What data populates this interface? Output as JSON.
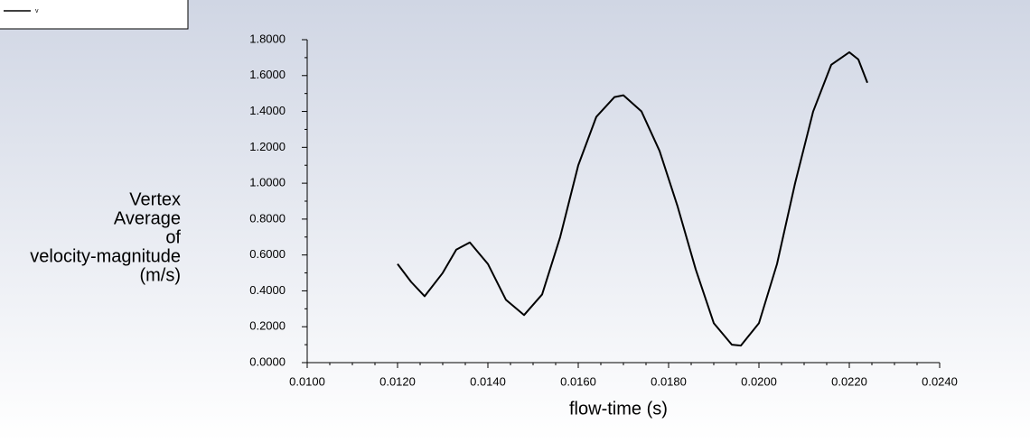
{
  "chart_data": {
    "type": "line",
    "x_label": "flow-time (s)",
    "y_label": [
      "Vertex",
      "Average",
      "of",
      "velocity-magnitude",
      "(m/s)"
    ],
    "x": [
      0.012,
      0.0123,
      0.0126,
      0.013,
      0.0133,
      0.0136,
      0.014,
      0.0144,
      0.0148,
      0.0152,
      0.0156,
      0.016,
      0.0164,
      0.0168,
      0.017,
      0.0174,
      0.0178,
      0.0182,
      0.0186,
      0.019,
      0.0194,
      0.0196,
      0.02,
      0.0204,
      0.0208,
      0.0212,
      0.0216,
      0.022,
      0.0222,
      0.0224
    ],
    "series": [
      {
        "name": "v",
        "color": "#000000",
        "values": [
          0.55,
          0.45,
          0.37,
          0.5,
          0.63,
          0.67,
          0.55,
          0.35,
          0.265,
          0.38,
          0.7,
          1.1,
          1.37,
          1.48,
          1.49,
          1.4,
          1.18,
          0.87,
          0.52,
          0.22,
          0.1,
          0.095,
          0.22,
          0.55,
          1.0,
          1.4,
          1.66,
          1.73,
          1.69,
          1.56
        ]
      }
    ],
    "xlim": [
      0.01,
      0.024
    ],
    "ylim": [
      0,
      1.8
    ],
    "xticks": [
      {
        "value": 0.01,
        "label": "0.0100"
      },
      {
        "value": 0.012,
        "label": "0.0120"
      },
      {
        "value": 0.014,
        "label": "0.0140"
      },
      {
        "value": 0.016,
        "label": "0.0160"
      },
      {
        "value": 0.018,
        "label": "0.0180"
      },
      {
        "value": 0.02,
        "label": "0.0200"
      },
      {
        "value": 0.022,
        "label": "0.0220"
      },
      {
        "value": 0.024,
        "label": "0.0240"
      }
    ],
    "yticks": [
      {
        "value": 0,
        "label": "0.0000"
      },
      {
        "value": 0.2,
        "label": "0.2000"
      },
      {
        "value": 0.4,
        "label": "0.4000"
      },
      {
        "value": 0.6,
        "label": "0.6000"
      },
      {
        "value": 0.8,
        "label": "0.8000"
      },
      {
        "value": 1.0,
        "label": "1.0000"
      },
      {
        "value": 1.2,
        "label": "1.2000"
      },
      {
        "value": 1.4,
        "label": "1.4000"
      },
      {
        "value": 1.6,
        "label": "1.6000"
      },
      {
        "value": 1.8,
        "label": "1.8000"
      }
    ],
    "x_minor_ticks": [
      0.0105,
      0.011,
      0.0115,
      0.0125,
      0.013,
      0.0135,
      0.0145,
      0.015,
      0.0155,
      0.0165,
      0.017,
      0.0175,
      0.0185,
      0.019,
      0.0195,
      0.0205,
      0.021,
      0.0215,
      0.0225,
      0.023,
      0.0235
    ],
    "y_minor_ticks": [
      0.1,
      0.3,
      0.5,
      0.7,
      0.9,
      1.1,
      1.3,
      1.5,
      1.7
    ],
    "grid": false
  }
}
